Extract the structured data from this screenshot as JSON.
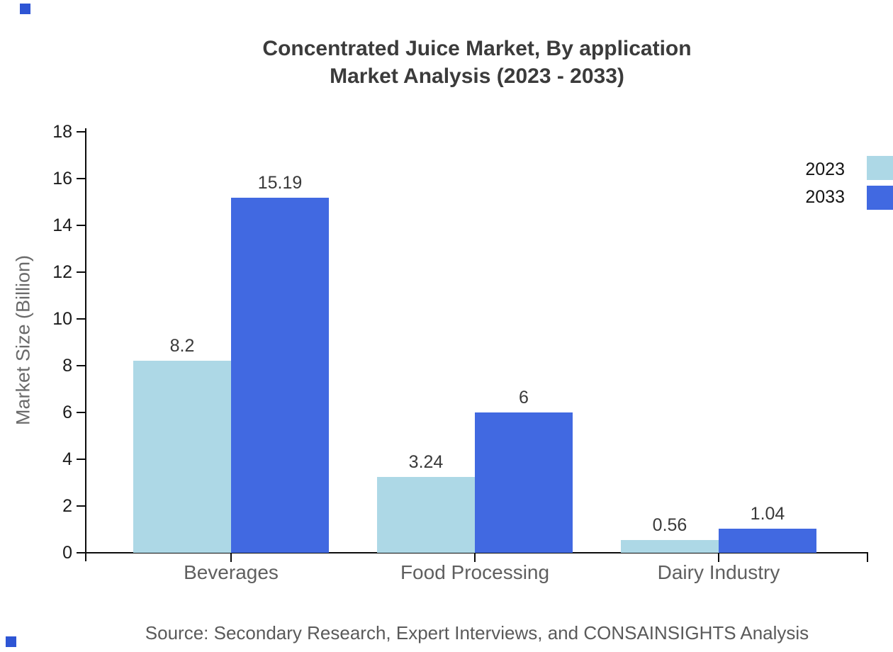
{
  "figure": {
    "title_line1": "Concentrated Juice Market, By application",
    "title_line2": "Market Analysis (2023 - 2033)",
    "source": "Source: Secondary Research, Expert Interviews, and CONSAINSIGHTS Analysis"
  },
  "chart_data": {
    "type": "bar",
    "title": "Concentrated Juice Market, By application Market Analysis (2023 - 2033)",
    "categories": [
      "Beverages",
      "Food Processing",
      "Dairy Industry"
    ],
    "series": [
      {
        "name": "2023",
        "color": "#ADD8E6",
        "values": [
          8.2,
          3.24,
          0.56
        ]
      },
      {
        "name": "2033",
        "color": "#4169E1",
        "values": [
          15.19,
          6,
          1.04
        ]
      }
    ],
    "data_labels": [
      [
        "8.2",
        "3.24",
        "0.56"
      ],
      [
        "15.19",
        "6",
        "1.04"
      ]
    ],
    "xlabel": "",
    "ylabel": "Market Size (Billion)",
    "ylim": [
      0,
      18
    ],
    "yticks": [
      0,
      2,
      4,
      6,
      8,
      10,
      12,
      14,
      16,
      18
    ],
    "grid": false,
    "legend_position": "top-right",
    "accent_colors": {
      "axis": "#0d0d0d",
      "decor_square": "#2e55d4"
    }
  }
}
